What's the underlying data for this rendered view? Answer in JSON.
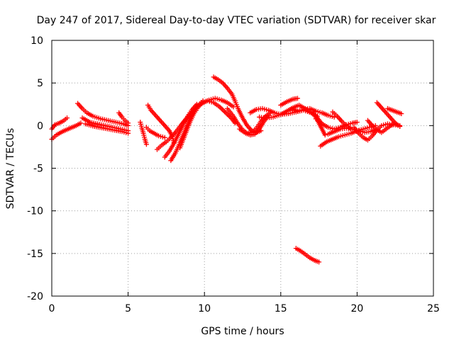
{
  "chart_data": {
    "type": "scatter",
    "title": "Day 247 of 2017, Sidereal Day-to-day VTEC variation (SDTVAR) for receiver skar",
    "xlabel": "GPS time / hours",
    "ylabel": "SDTVAR / TECUs",
    "xlim": [
      0,
      25
    ],
    "ylim": [
      -20,
      10
    ],
    "xticks": [
      "0",
      "5",
      "10",
      "15",
      "20",
      "25"
    ],
    "yticks": [
      "10",
      "5",
      "0",
      "-5",
      "-10",
      "-15",
      "-20"
    ],
    "grid": true,
    "marker": "plus",
    "series": [
      {
        "name": "SDTVAR",
        "color": "#ff0000",
        "tracks": [
          [
            [
              0.0,
              -0.4
            ],
            [
              0.2,
              0.1
            ],
            [
              0.5,
              0.3
            ],
            [
              0.8,
              0.6
            ],
            [
              1.0,
              0.9
            ]
          ],
          [
            [
              0.0,
              -1.6
            ],
            [
              0.3,
              -1.1
            ],
            [
              0.7,
              -0.7
            ],
            [
              1.2,
              -0.3
            ],
            [
              1.6,
              0.0
            ],
            [
              1.9,
              0.3
            ]
          ],
          [
            [
              1.7,
              2.6
            ],
            [
              2.0,
              2.0
            ],
            [
              2.3,
              1.5
            ],
            [
              2.7,
              1.1
            ],
            [
              3.2,
              0.8
            ],
            [
              3.7,
              0.6
            ],
            [
              4.2,
              0.4
            ],
            [
              4.7,
              0.2
            ],
            [
              5.0,
              0.0
            ]
          ],
          [
            [
              2.0,
              0.9
            ],
            [
              2.5,
              0.4
            ],
            [
              3.0,
              0.2
            ],
            [
              3.5,
              0.0
            ],
            [
              4.0,
              -0.2
            ],
            [
              4.5,
              -0.4
            ],
            [
              5.0,
              -0.6
            ]
          ],
          [
            [
              2.2,
              0.2
            ],
            [
              2.8,
              -0.1
            ],
            [
              3.4,
              -0.3
            ],
            [
              4.0,
              -0.5
            ],
            [
              4.6,
              -0.7
            ],
            [
              5.0,
              -0.9
            ]
          ],
          [
            [
              4.4,
              1.5
            ],
            [
              4.6,
              1.0
            ],
            [
              4.8,
              0.6
            ],
            [
              5.0,
              0.3
            ]
          ],
          [
            [
              5.8,
              0.4
            ],
            [
              5.9,
              -0.3
            ],
            [
              6.0,
              -0.9
            ],
            [
              6.1,
              -1.6
            ],
            [
              6.2,
              -2.2
            ]
          ],
          [
            [
              6.2,
              -0.2
            ],
            [
              6.4,
              -0.6
            ],
            [
              6.7,
              -0.9
            ],
            [
              7.0,
              -1.2
            ],
            [
              7.4,
              -1.4
            ]
          ],
          [
            [
              6.3,
              2.4
            ],
            [
              6.5,
              1.8
            ],
            [
              6.8,
              1.2
            ],
            [
              7.1,
              0.6
            ],
            [
              7.4,
              0.0
            ],
            [
              7.7,
              -0.6
            ],
            [
              7.9,
              -1.3
            ],
            [
              8.0,
              -2.0
            ]
          ],
          [
            [
              6.9,
              -2.8
            ],
            [
              7.2,
              -2.3
            ],
            [
              7.5,
              -1.9
            ],
            [
              7.8,
              -1.4
            ],
            [
              8.1,
              -0.8
            ],
            [
              8.4,
              -0.1
            ],
            [
              8.7,
              0.6
            ],
            [
              9.0,
              1.2
            ]
          ],
          [
            [
              7.4,
              -3.7
            ],
            [
              7.7,
              -3.0
            ],
            [
              8.0,
              -2.1
            ],
            [
              8.3,
              -1.0
            ],
            [
              8.6,
              0.1
            ],
            [
              8.9,
              1.1
            ],
            [
              9.2,
              1.9
            ],
            [
              9.5,
              2.5
            ]
          ],
          [
            [
              7.8,
              -4.1
            ],
            [
              8.1,
              -3.2
            ],
            [
              8.4,
              -2.0
            ],
            [
              8.7,
              -0.7
            ],
            [
              9.0,
              0.6
            ],
            [
              9.3,
              1.7
            ],
            [
              9.6,
              2.4
            ],
            [
              9.9,
              2.9
            ]
          ],
          [
            [
              8.4,
              -2.6
            ],
            [
              8.7,
              -1.2
            ],
            [
              9.0,
              0.2
            ],
            [
              9.3,
              1.4
            ],
            [
              9.6,
              2.2
            ],
            [
              9.9,
              2.7
            ],
            [
              10.3,
              3.0
            ],
            [
              10.7,
              3.2
            ],
            [
              11.1,
              3.0
            ],
            [
              11.5,
              2.7
            ],
            [
              11.9,
              2.2
            ]
          ],
          [
            [
              8.6,
              0.3
            ],
            [
              9.0,
              1.2
            ],
            [
              9.4,
              2.0
            ],
            [
              9.8,
              2.6
            ],
            [
              10.2,
              2.9
            ],
            [
              10.6,
              2.7
            ],
            [
              11.0,
              2.2
            ],
            [
              11.4,
              1.5
            ],
            [
              11.8,
              0.8
            ],
            [
              12.0,
              0.3
            ]
          ],
          [
            [
              10.6,
              5.7
            ],
            [
              10.9,
              5.4
            ],
            [
              11.2,
              5.0
            ],
            [
              11.5,
              4.4
            ],
            [
              11.8,
              3.7
            ],
            [
              12.0,
              2.9
            ],
            [
              12.2,
              2.0
            ],
            [
              12.5,
              0.9
            ],
            [
              12.8,
              0.0
            ],
            [
              13.1,
              -0.6
            ],
            [
              13.4,
              -0.8
            ],
            [
              13.7,
              -0.6
            ]
          ],
          [
            [
              11.5,
              2.0
            ],
            [
              11.9,
              1.1
            ],
            [
              12.2,
              0.2
            ],
            [
              12.5,
              -0.5
            ],
            [
              12.8,
              -0.9
            ],
            [
              13.1,
              -0.8
            ],
            [
              13.4,
              -0.3
            ],
            [
              13.7,
              0.5
            ],
            [
              14.0,
              1.1
            ],
            [
              14.3,
              1.5
            ]
          ],
          [
            [
              12.3,
              -0.4
            ],
            [
              12.7,
              -0.9
            ],
            [
              13.0,
              -1.1
            ],
            [
              13.3,
              -1.0
            ],
            [
              13.6,
              -0.4
            ],
            [
              13.9,
              0.5
            ],
            [
              14.2,
              1.2
            ]
          ],
          [
            [
              13.0,
              1.5
            ],
            [
              13.4,
              1.9
            ],
            [
              13.8,
              2.0
            ],
            [
              14.2,
              1.8
            ],
            [
              14.6,
              1.5
            ],
            [
              15.0,
              1.3
            ],
            [
              15.5,
              1.4
            ],
            [
              16.0,
              1.6
            ],
            [
              16.5,
              1.8
            ],
            [
              17.0,
              1.5
            ],
            [
              17.4,
              1.1
            ]
          ],
          [
            [
              13.6,
              1.0
            ],
            [
              14.0,
              0.9
            ],
            [
              14.5,
              1.0
            ],
            [
              15.0,
              1.3
            ],
            [
              15.4,
              1.7
            ],
            [
              15.8,
              2.1
            ],
            [
              16.2,
              2.4
            ],
            [
              16.6,
              2.0
            ],
            [
              17.0,
              1.5
            ],
            [
              17.4,
              0.9
            ],
            [
              17.7,
              0.2
            ]
          ],
          [
            [
              15.0,
              2.4
            ],
            [
              15.4,
              2.8
            ],
            [
              15.8,
              3.1
            ],
            [
              16.1,
              3.2
            ]
          ],
          [
            [
              15.7,
              2.0
            ],
            [
              16.1,
              1.7
            ],
            [
              16.5,
              1.9
            ],
            [
              16.9,
              2.0
            ],
            [
              17.3,
              1.7
            ],
            [
              17.7,
              1.5
            ],
            [
              18.1,
              1.2
            ],
            [
              18.5,
              1.0
            ]
          ],
          [
            [
              17.1,
              1.6
            ],
            [
              17.3,
              1.0
            ],
            [
              17.5,
              0.3
            ],
            [
              17.7,
              -0.4
            ],
            [
              17.9,
              -1.1
            ]
          ],
          [
            [
              17.3,
              0.8
            ],
            [
              17.7,
              0.2
            ],
            [
              18.1,
              -0.2
            ],
            [
              18.5,
              -0.4
            ],
            [
              18.9,
              -0.2
            ],
            [
              19.3,
              0.1
            ],
            [
              19.7,
              0.3
            ],
            [
              20.0,
              0.4
            ]
          ],
          [
            [
              17.6,
              -2.4
            ],
            [
              18.0,
              -1.9
            ],
            [
              18.4,
              -1.6
            ],
            [
              18.8,
              -1.3
            ],
            [
              19.2,
              -1.1
            ],
            [
              19.6,
              -0.9
            ],
            [
              20.0,
              -0.6
            ],
            [
              20.4,
              -0.4
            ],
            [
              20.8,
              -0.2
            ],
            [
              21.2,
              0.0
            ]
          ],
          [
            [
              18.1,
              -1.0
            ],
            [
              18.5,
              -0.7
            ],
            [
              18.9,
              -0.4
            ],
            [
              19.3,
              -0.3
            ],
            [
              19.7,
              -0.4
            ],
            [
              20.1,
              -0.6
            ],
            [
              20.5,
              -0.8
            ],
            [
              20.9,
              -0.7
            ],
            [
              21.3,
              -0.4
            ]
          ],
          [
            [
              18.4,
              1.6
            ],
            [
              18.7,
              1.1
            ],
            [
              19.0,
              0.5
            ],
            [
              19.3,
              0.0
            ],
            [
              19.6,
              -0.4
            ]
          ],
          [
            [
              19.8,
              -0.2
            ],
            [
              20.1,
              -0.9
            ],
            [
              20.4,
              -1.4
            ],
            [
              20.7,
              -1.7
            ],
            [
              21.0,
              -1.2
            ],
            [
              21.3,
              -0.5
            ],
            [
              21.6,
              0.0
            ],
            [
              22.0,
              0.2
            ],
            [
              22.4,
              0.1
            ],
            [
              22.8,
              0.0
            ]
          ],
          [
            [
              20.7,
              0.6
            ],
            [
              21.0,
              0.0
            ],
            [
              21.3,
              -0.5
            ],
            [
              21.6,
              -0.8
            ],
            [
              21.9,
              -0.4
            ],
            [
              22.2,
              0.0
            ],
            [
              22.5,
              0.2
            ]
          ],
          [
            [
              21.3,
              2.7
            ],
            [
              21.6,
              2.1
            ],
            [
              21.9,
              1.5
            ],
            [
              22.2,
              0.9
            ],
            [
              22.5,
              0.3
            ],
            [
              22.8,
              -0.1
            ]
          ],
          [
            [
              22.0,
              2.0
            ],
            [
              22.3,
              1.8
            ],
            [
              22.6,
              1.6
            ],
            [
              22.9,
              1.4
            ]
          ],
          [
            [
              16.0,
              -14.4
            ],
            [
              16.3,
              -14.7
            ],
            [
              16.6,
              -15.1
            ],
            [
              16.9,
              -15.5
            ],
            [
              17.2,
              -15.8
            ],
            [
              17.5,
              -16.0
            ]
          ]
        ]
      }
    ]
  }
}
